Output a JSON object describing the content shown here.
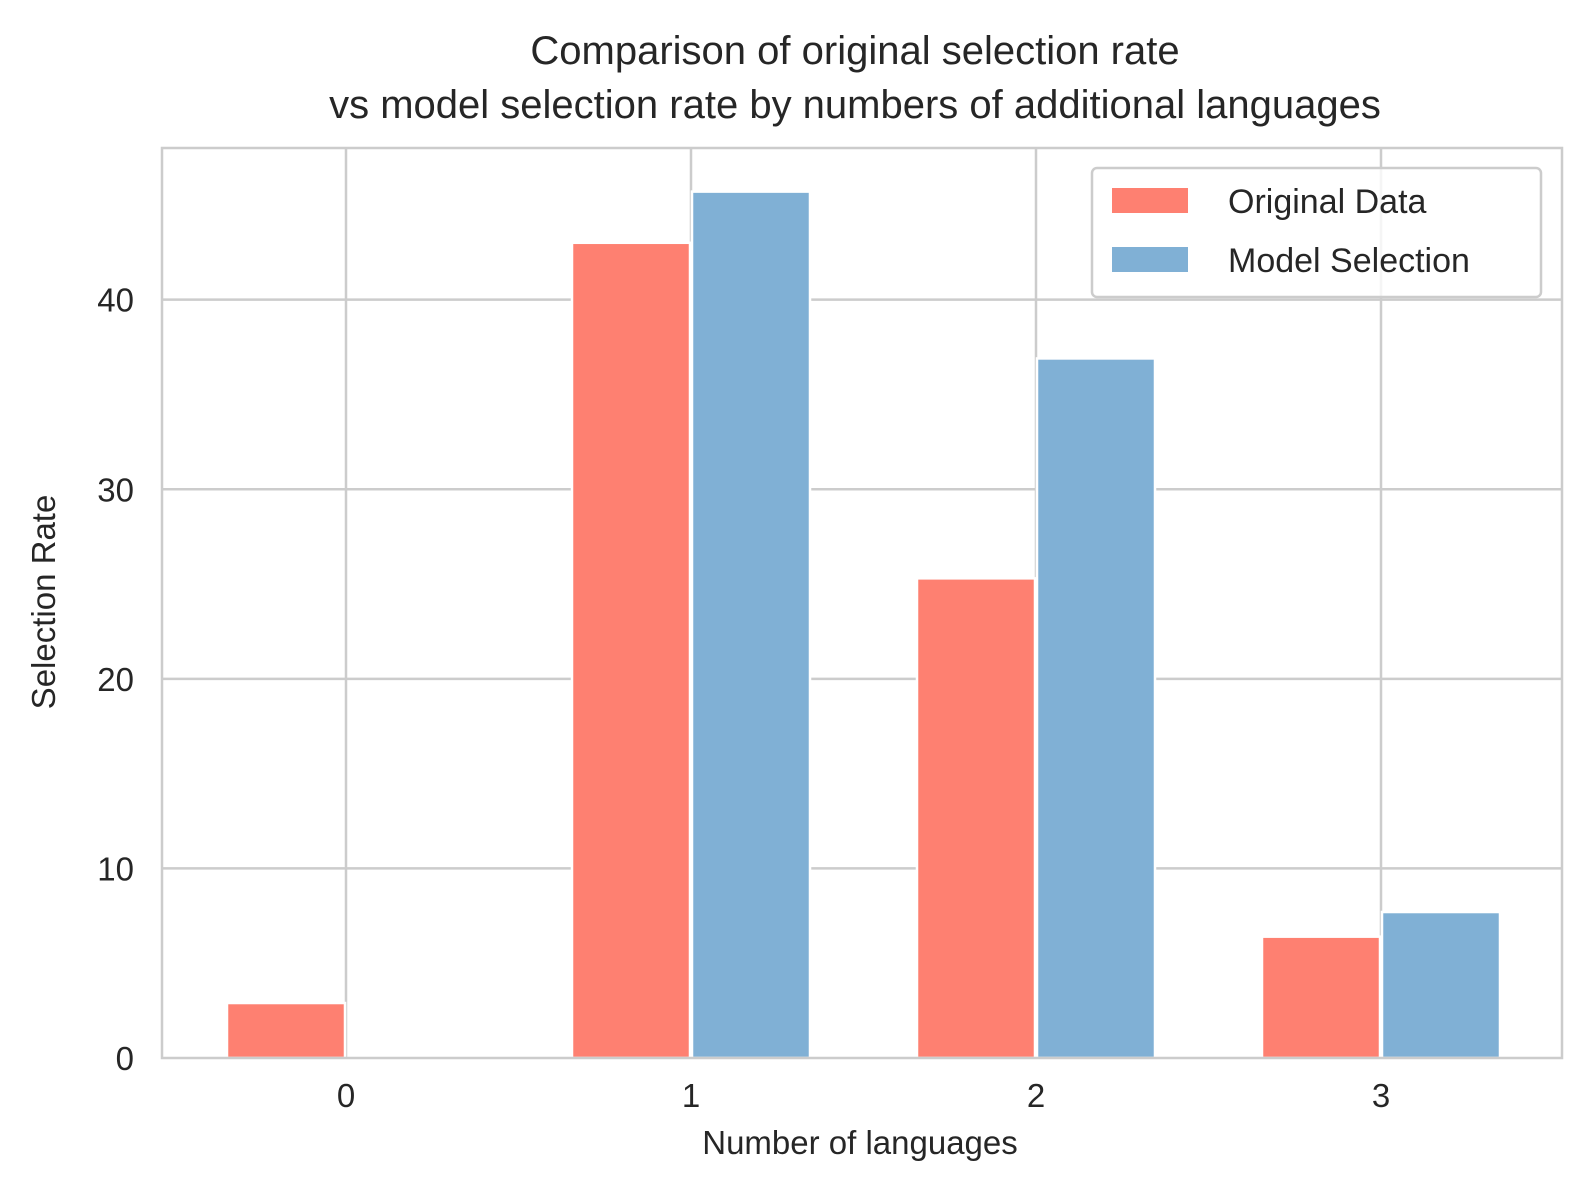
{
  "chart_data": {
    "type": "bar",
    "title": "Comparison of original selection rate\nvs model selection rate by numbers of additional languages",
    "title_lines": [
      "Comparison of original selection rate",
      "vs model selection rate by numbers of additional languages"
    ],
    "xlabel": "Number of languages",
    "ylabel": "Selection Rate",
    "categories": [
      "0",
      "1",
      "2",
      "3"
    ],
    "series": [
      {
        "name": "Original Data",
        "color": "#fe8071",
        "values": [
          2.9,
          43.0,
          25.3,
          6.4
        ]
      },
      {
        "name": "Model Selection",
        "color": "#80b0d5",
        "values": [
          0,
          45.7,
          36.9,
          7.7
        ]
      }
    ],
    "ylim": [
      0,
      48
    ],
    "yticks": [
      0,
      10,
      20,
      30,
      40
    ],
    "grid": true,
    "legend_position": "top-right"
  }
}
